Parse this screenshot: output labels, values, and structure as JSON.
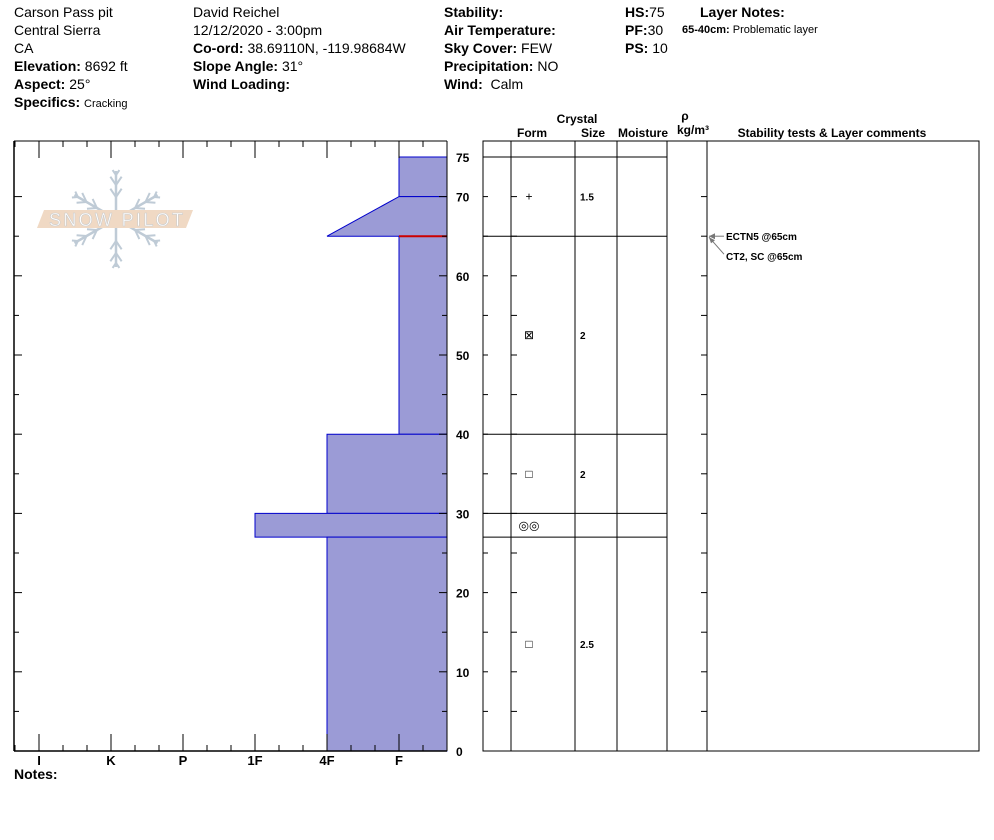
{
  "header": {
    "col1": {
      "pit_name": "Carson Pass pit",
      "range": "Central Sierra",
      "state": "CA",
      "elevation_label": "Elevation:",
      "elevation": "8692 ft",
      "aspect_label": "Aspect:",
      "aspect": "25°",
      "specifics_label": "Specifics:",
      "specifics": "Cracking"
    },
    "col2": {
      "observer": "David Reichel",
      "datetime": "12/12/2020 - 3:00pm",
      "coord_label": "Co-ord:",
      "coord": "38.69110N, -119.98684W",
      "slope_label": "Slope Angle:",
      "slope": "31°",
      "wind_loading_label": "Wind Loading:"
    },
    "col3": {
      "stability_label": "Stability:",
      "air_temp_label": "Air Temperature:",
      "sky_label": "Sky Cover:",
      "sky": "FEW",
      "precip_label": "Precipitation:",
      "precip": "NO",
      "wind_label": "Wind:",
      "wind": "Calm"
    },
    "col4": {
      "hs_label": "HS:",
      "hs": "75",
      "pf_label": "PF:",
      "pf": "30",
      "ps_label": "PS:",
      "ps": "10"
    },
    "layer_notes": {
      "title": "Layer Notes:",
      "range": "65-40cm:",
      "note": "Problematic layer"
    }
  },
  "logo": {
    "text": "SNOW PILOT",
    "band_color": "#f0d9c4",
    "flake_color": "#bfcbd6"
  },
  "hardness_profile": {
    "hardness_labels": [
      "I",
      "K",
      "P",
      "1F",
      "4F",
      "F"
    ],
    "depth_ticks": [
      0,
      10,
      20,
      30,
      40,
      50,
      60,
      70,
      75
    ],
    "fill_color": "#9b9bd6",
    "edge_color": "#0000cc",
    "critical_layer_color": "#cc0000",
    "critical_layer_depth_cm": 65,
    "layers": [
      {
        "top": 75,
        "bottom": 70,
        "hardness": "F"
      },
      {
        "top": 70,
        "bottom": 65,
        "hardness_top": "F",
        "hardness_bottom": "4F"
      },
      {
        "top": 65,
        "bottom": 40,
        "hardness": "F"
      },
      {
        "top": 40,
        "bottom": 30,
        "hardness": "4F"
      },
      {
        "top": 30,
        "bottom": 27,
        "hardness": "1F"
      },
      {
        "top": 27,
        "bottom": 0,
        "hardness": "4F"
      }
    ]
  },
  "notes_label": "Notes:",
  "table": {
    "headers": {
      "crystal": "Crystal",
      "form": "Form",
      "size": "Size",
      "moisture": "Moisture",
      "rho": "ρ",
      "density": "kg/m³",
      "comments": "Stability tests & Layer comments"
    },
    "layer_boundaries": [
      75,
      65,
      40,
      30,
      27
    ],
    "rows": [
      {
        "depth": 70,
        "form": "+",
        "form_icon": "precipitation-particles-icon",
        "size": "1.5"
      },
      {
        "depth": 52.5,
        "form": "⊠",
        "form_icon": "faceted-rounded-icon",
        "size": "2"
      },
      {
        "depth": 35,
        "form": "□",
        "form_icon": "faceted-crystals-icon",
        "size": "2"
      },
      {
        "depth": 28.5,
        "form": "◎◎",
        "form_icon": "melt-freeze-icon",
        "size": ""
      },
      {
        "depth": 13.5,
        "form": "□",
        "form_icon": "faceted-crystals-icon",
        "size": "2.5"
      }
    ],
    "tests": [
      {
        "text": "ECTN5 @65cm",
        "depth": 65
      },
      {
        "text": "CT2, SC @65cm",
        "depth": 65
      }
    ]
  }
}
